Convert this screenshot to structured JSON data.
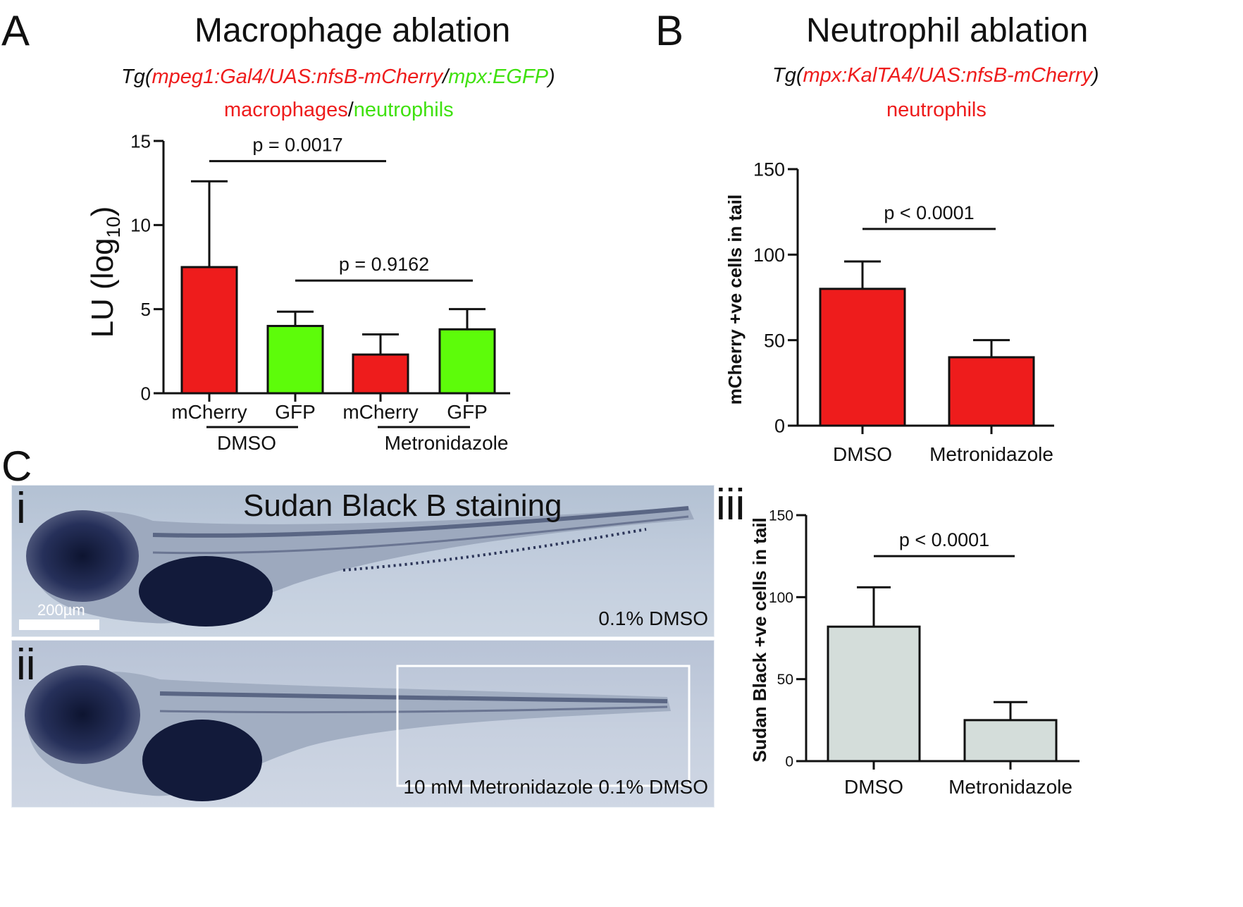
{
  "panel_a": {
    "letter": "A",
    "title": "Macrophage ablation",
    "transgene": {
      "prefix": "Tg(",
      "red_part": "mpeg1:Gal4/UAS:nfsB-mCherry",
      "slash": "/",
      "green_part": "mpx:EGFP",
      "suffix": ")"
    },
    "cells": {
      "red_part": "macrophages",
      "slash": "/",
      "green_part": "neutrophils"
    }
  },
  "panel_b": {
    "letter": "B",
    "title": "Neutrophil ablation",
    "transgene": {
      "prefix": "Tg(",
      "red_part": "mpx:KalTA4/UAS:nfsB-mCherry",
      "suffix": ")"
    },
    "cells": "neutrophils"
  },
  "panel_c": {
    "letter": "C",
    "image_title": "Sudan Black B staining",
    "sub_i": {
      "numeral": "i",
      "label": "0.1% DMSO",
      "scale_bar": "200µm"
    },
    "sub_ii": {
      "numeral": "ii",
      "label": "10 mM Metronidazole 0.1% DMSO"
    },
    "sub_iii": {
      "numeral": "iii"
    }
  },
  "colors": {
    "red": "#ee1c1c",
    "green": "#5dfc0a",
    "grey": "#d4ddda",
    "axis": "#111111"
  },
  "chart_data": [
    {
      "id": "A",
      "type": "bar",
      "title": "",
      "ylabel": "LU (log",
      "ylabel_sub": "10",
      "ylabel_end": ")",
      "ylim": [
        0,
        15
      ],
      "yticks": [
        0,
        5,
        10,
        15
      ],
      "categories": [
        "mCherry",
        "GFP",
        "mCherry",
        "GFP"
      ],
      "groups": [
        {
          "label": "DMSO",
          "from": 0,
          "to": 1
        },
        {
          "label": "Metronidazole",
          "from": 2,
          "to": 3
        }
      ],
      "values": [
        7.5,
        4.0,
        2.3,
        3.8
      ],
      "errors": [
        5.1,
        0.85,
        1.2,
        1.2
      ],
      "bar_colors": [
        "red",
        "green",
        "red",
        "green"
      ],
      "annotations": [
        {
          "text": "p = 0.0017",
          "from": 0,
          "to": 2,
          "y": 13.8
        },
        {
          "text": "p = 0.9162",
          "from": 1,
          "to": 3,
          "y": 6.7
        }
      ]
    },
    {
      "id": "B",
      "type": "bar",
      "title": "",
      "ylabel": "mCherry +ve cells in tail",
      "ylim": [
        0,
        150
      ],
      "yticks": [
        0,
        50,
        100,
        150
      ],
      "categories": [
        "DMSO",
        "Metronidazole"
      ],
      "values": [
        80,
        40
      ],
      "errors": [
        16,
        10
      ],
      "bar_colors": [
        "red",
        "red"
      ],
      "annotations": [
        {
          "text": "p < 0.0001",
          "from": 0,
          "to": 1,
          "y": 115
        }
      ]
    },
    {
      "id": "Ciii",
      "type": "bar",
      "title": "",
      "ylabel": "Sudan Black +ve cells in tail",
      "ylim": [
        0,
        150
      ],
      "yticks": [
        0,
        50,
        100,
        150
      ],
      "categories": [
        "DMSO",
        "Metronidazole"
      ],
      "values": [
        82,
        25
      ],
      "errors": [
        24,
        11
      ],
      "bar_colors": [
        "grey",
        "grey"
      ],
      "annotations": [
        {
          "text": "p < 0.0001",
          "from": 0,
          "to": 1,
          "y": 125
        }
      ]
    }
  ]
}
